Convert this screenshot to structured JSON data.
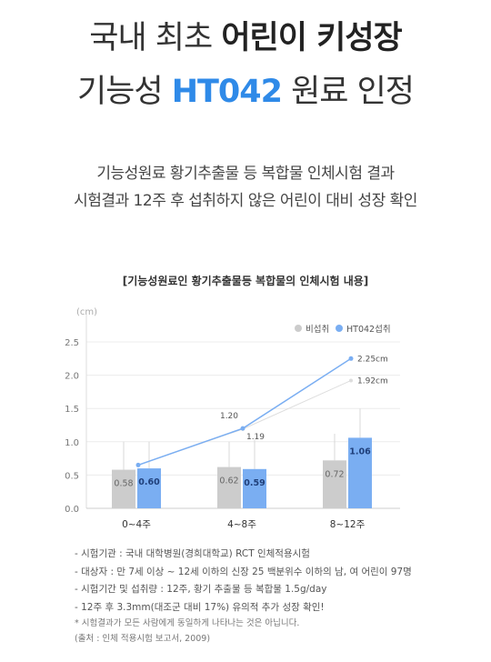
{
  "headline": {
    "line1_a": "국내 최초 ",
    "line1_b": "어린이 키성장",
    "line2_a": "기능성 ",
    "line2_accent": "HT042",
    "line2_b": " 원료 인정"
  },
  "subtitle": {
    "line1": "기능성원료 황기추출물 등 복합물 인체시험 결과",
    "line2": "시험결과 12주 후 섭취하지 않은 어린이 대비 성장 확인"
  },
  "colors": {
    "accent": "#2f8ae8",
    "bar_control": "#cccccc",
    "bar_ht042": "#7aaef2",
    "line_ht042": "#7aaef2",
    "line_control": "#dddddd"
  },
  "chart_data": {
    "type": "bar",
    "title": "[기능성원료인 황기추출물등 복합물의 인체시험 내용]",
    "ylabel": "(cm)",
    "ylim": [
      0,
      2.5
    ],
    "yticks": [
      "0.0",
      "0.5",
      "1.0",
      "1.5",
      "2.0",
      "2.5"
    ],
    "categories": [
      "0~4주",
      "4~8주",
      "8~12주"
    ],
    "legend": {
      "placement": "top-right"
    },
    "series": [
      {
        "name": "비섭취",
        "values": [
          0.58,
          0.62,
          0.72
        ],
        "labels": [
          "0.58",
          "0.62",
          "0.72"
        ]
      },
      {
        "name": "HT042섭취",
        "values": [
          0.6,
          0.59,
          1.06
        ],
        "labels": [
          "0.60",
          "0.59",
          "1.06"
        ]
      }
    ],
    "error_tops": {
      "control": [
        1.0,
        1.0,
        1.12
      ],
      "ht042": [
        1.0,
        1.03,
        1.5
      ]
    },
    "lines": [
      {
        "series": "HT042섭취",
        "values": [
          0.65,
          1.2,
          2.25
        ],
        "labels": [
          "",
          "1.20",
          "2.25cm"
        ]
      },
      {
        "series": "비섭취",
        "values": [
          0.65,
          1.19,
          1.92
        ],
        "labels": [
          "",
          "1.19",
          "1.92cm"
        ]
      }
    ]
  },
  "notes": [
    "- 시험기관 : 국내 대학병원(경희대학교) RCT 인체적용시험",
    "- 대상자 : 만 7세 이상 ~ 12세 이하의 신장 25 백분위수 이하의 남, 여 어린이 97명",
    "- 시험기간 및 섭취량 : 12주, 황기 추출물 등 복합물 1.5g/day",
    "- 12주 후 3.3mm(대조군 대비 17%) 유의적 추가 성장 확인!"
  ],
  "fine_print": [
    "* 시험결과가 모든 사람에게 동일하게 나타나는 것은 아닙니다.",
    "(출처 : 인체 적용시험 보고서, 2009)"
  ]
}
